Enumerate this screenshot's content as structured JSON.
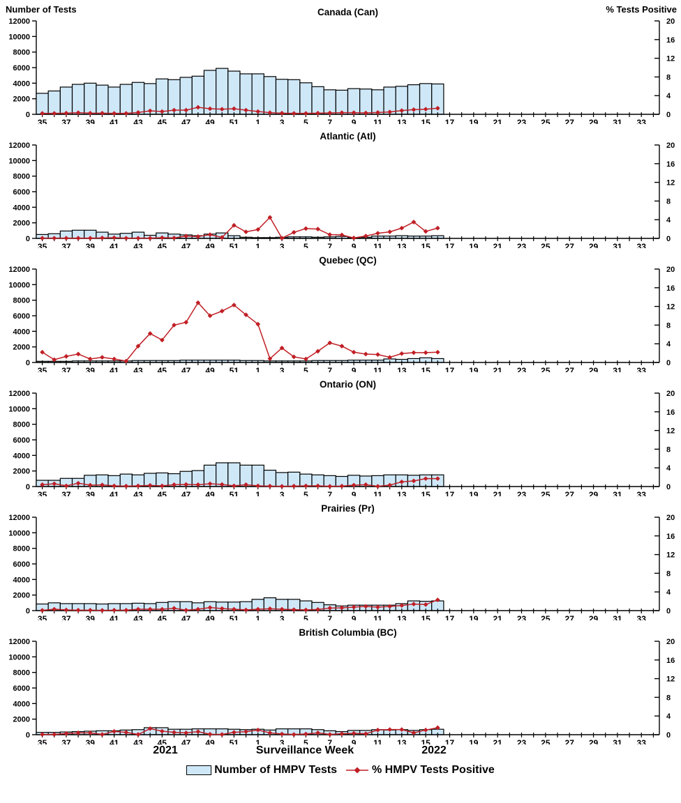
{
  "header": {
    "left_axis_title": "Number of Tests",
    "right_axis_title": "% Tests Positive"
  },
  "footer": {
    "year_left": "2021",
    "axis_title": "Surveillance Week",
    "year_right": "2022"
  },
  "legend": {
    "bars_label": "Number of HMPV Tests",
    "line_label": "% HMPV Tests Positive"
  },
  "colors": {
    "bar_fill": "#cfe8f8",
    "bar_border": "#000000",
    "line_color": "#c01f25",
    "text_color": "#000000"
  },
  "chart_data": {
    "type": "bar+line",
    "x_axis": {
      "title": "Surveillance Week",
      "tick_labels": [
        "35",
        "37",
        "39",
        "41",
        "43",
        "45",
        "47",
        "49",
        "51",
        "1",
        "3",
        "5",
        "7",
        "9",
        "11",
        "13",
        "15",
        "17",
        "19",
        "21",
        "23",
        "25",
        "27",
        "29",
        "31",
        "33"
      ],
      "total_weeks": 52,
      "year_markers": [
        "2021",
        "2022"
      ]
    },
    "left_axis": {
      "title": "Number of Tests",
      "range": [
        0,
        12000
      ],
      "ticks": [
        0,
        2000,
        4000,
        6000,
        8000,
        10000,
        12000
      ]
    },
    "right_axis": {
      "title": "% Tests Positive",
      "range": [
        0,
        20
      ],
      "ticks": [
        0,
        4,
        8,
        12,
        16,
        20
      ]
    },
    "series_legend": [
      "Number of HMPV Tests",
      "% HMPV Tests Positive"
    ],
    "data_weeks": [
      "35",
      "36",
      "37",
      "38",
      "39",
      "40",
      "41",
      "42",
      "43",
      "44",
      "45",
      "46",
      "47",
      "48",
      "49",
      "50",
      "51",
      "52",
      "1",
      "2",
      "3",
      "4",
      "5",
      "6",
      "7",
      "8",
      "9",
      "10",
      "11",
      "12",
      "13",
      "14",
      "15",
      "16"
    ],
    "panels": [
      {
        "slug": "can",
        "title": "Canada (Can)",
        "tests": [
          2700,
          3000,
          3500,
          3850,
          4000,
          3750,
          3500,
          3850,
          4100,
          3950,
          4550,
          4450,
          4750,
          4900,
          5650,
          5900,
          5550,
          5200,
          5200,
          4850,
          4500,
          4450,
          4050,
          3550,
          3150,
          3100,
          3300,
          3250,
          3150,
          3500,
          3600,
          3800,
          3950,
          3900
        ],
        "pct_positive": [
          0.2,
          0.2,
          0.25,
          0.35,
          0.25,
          0.25,
          0.2,
          0.2,
          0.4,
          0.75,
          0.6,
          0.9,
          0.9,
          1.5,
          1.2,
          1.1,
          1.2,
          0.9,
          0.6,
          0.35,
          0.25,
          0.2,
          0.2,
          0.25,
          0.3,
          0.35,
          0.35,
          0.3,
          0.4,
          0.5,
          0.8,
          1.0,
          1.1,
          1.3
        ]
      },
      {
        "slug": "atl",
        "title": "Atlantic (Atl)",
        "tests": [
          500,
          600,
          950,
          1050,
          1050,
          800,
          550,
          650,
          800,
          400,
          700,
          550,
          450,
          350,
          550,
          700,
          350,
          150,
          100,
          100,
          150,
          200,
          200,
          150,
          200,
          250,
          100,
          150,
          300,
          300,
          350,
          300,
          300,
          350
        ],
        "pct_positive": [
          0.05,
          0.05,
          0.05,
          0.05,
          0.05,
          0.1,
          0.15,
          0.05,
          0.05,
          0.05,
          0.15,
          0.1,
          0.5,
          0.4,
          0.8,
          0.2,
          2.8,
          1.4,
          1.9,
          4.5,
          0.05,
          1.3,
          2.1,
          2.0,
          0.8,
          0.75,
          0.1,
          0.5,
          1.1,
          1.4,
          2.2,
          3.5,
          1.5,
          2.2
        ]
      },
      {
        "slug": "qc",
        "title": "Quebec (QC)",
        "tests": [
          150,
          150,
          150,
          200,
          200,
          200,
          200,
          200,
          250,
          250,
          250,
          250,
          300,
          300,
          300,
          300,
          300,
          250,
          250,
          200,
          200,
          200,
          200,
          250,
          250,
          250,
          300,
          300,
          300,
          450,
          400,
          500,
          600,
          500
        ],
        "pct_positive": [
          2.2,
          0.6,
          1.3,
          1.8,
          0.75,
          1.1,
          0.75,
          0.3,
          3.5,
          6.2,
          4.8,
          8.0,
          8.6,
          12.8,
          10.0,
          11.0,
          12.3,
          10.2,
          8.2,
          0.8,
          3.1,
          1.2,
          0.75,
          2.4,
          4.2,
          3.5,
          2.2,
          1.8,
          1.7,
          1.1,
          1.9,
          2.1,
          2.1,
          2.2
        ]
      },
      {
        "slug": "on",
        "title": "Ontario (ON)",
        "tests": [
          800,
          800,
          1050,
          1050,
          1450,
          1500,
          1400,
          1600,
          1500,
          1700,
          1750,
          1650,
          1950,
          2050,
          2750,
          3050,
          3050,
          2750,
          2750,
          2100,
          1800,
          1850,
          1600,
          1500,
          1400,
          1300,
          1450,
          1350,
          1400,
          1500,
          1500,
          1450,
          1500,
          1500
        ],
        "pct_positive": [
          0.4,
          0.6,
          0.15,
          0.7,
          0.3,
          0.35,
          0.15,
          0.1,
          0.15,
          0.25,
          0.15,
          0.4,
          0.45,
          0.4,
          0.6,
          0.45,
          0.15,
          0.4,
          0.15,
          0.1,
          0.05,
          0.1,
          0.15,
          0.15,
          0.05,
          0.1,
          0.3,
          0.4,
          0.05,
          0.3,
          1.0,
          1.2,
          1.7,
          1.7
        ]
      },
      {
        "slug": "pr",
        "title": "Prairies (Pr)",
        "tests": [
          850,
          1000,
          900,
          900,
          900,
          850,
          900,
          900,
          950,
          900,
          1050,
          1150,
          1150,
          1000,
          1150,
          1100,
          1100,
          1150,
          1450,
          1650,
          1450,
          1450,
          1250,
          1050,
          750,
          600,
          700,
          700,
          700,
          700,
          900,
          1250,
          1200,
          1250
        ],
        "pct_positive": [
          0.05,
          0.3,
          0.15,
          0.1,
          0.1,
          0.05,
          0.1,
          0.1,
          0.3,
          0.3,
          0.3,
          0.5,
          0.1,
          0.3,
          0.65,
          0.45,
          0.3,
          0.15,
          0.3,
          0.4,
          0.3,
          0.2,
          0.15,
          0.25,
          0.55,
          0.6,
          0.75,
          0.9,
          0.75,
          0.9,
          1.1,
          1.4,
          1.3,
          2.3
        ]
      },
      {
        "slug": "bc",
        "title": "British Columbia (BC)",
        "tests": [
          300,
          300,
          350,
          400,
          450,
          500,
          500,
          600,
          650,
          900,
          900,
          700,
          700,
          750,
          750,
          750,
          700,
          650,
          700,
          600,
          750,
          750,
          750,
          650,
          500,
          400,
          550,
          550,
          650,
          600,
          650,
          550,
          650,
          700
        ],
        "pct_positive": [
          0.05,
          0.05,
          0.25,
          0.4,
          0.4,
          0.05,
          0.7,
          0.5,
          0.05,
          1.3,
          0.75,
          0.5,
          0.4,
          0.65,
          0.1,
          0.05,
          0.5,
          0.65,
          1.0,
          0.4,
          0.15,
          0.05,
          0.15,
          0.4,
          0.05,
          0.2,
          0.3,
          0.2,
          1.0,
          1.1,
          1.1,
          0.4,
          1.0,
          1.5
        ]
      }
    ]
  }
}
